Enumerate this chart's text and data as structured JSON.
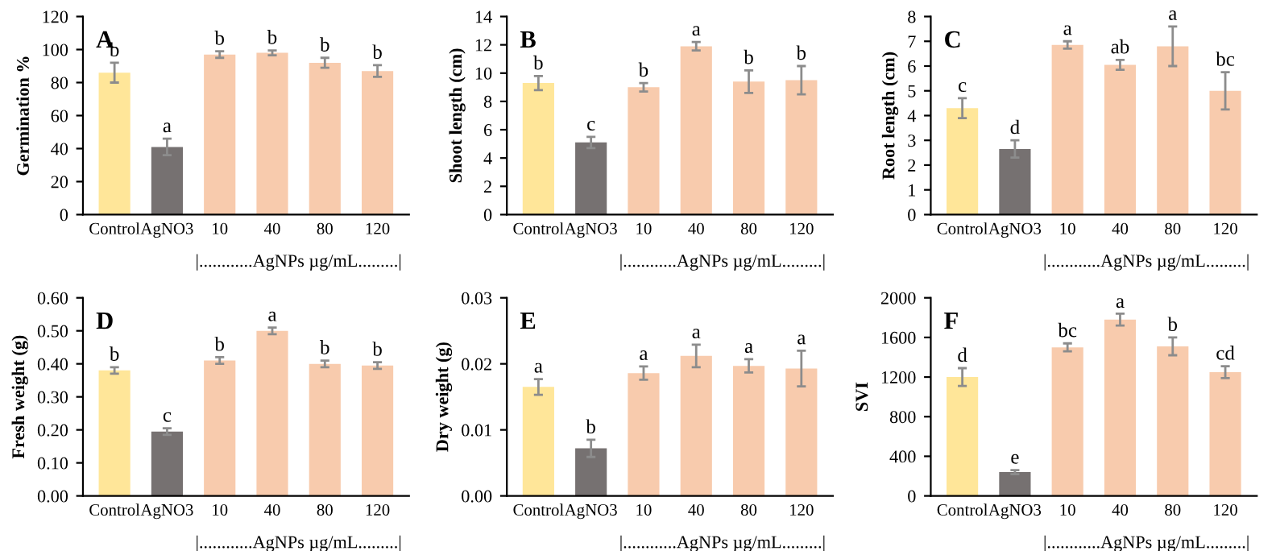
{
  "chart_data": [
    {
      "type": "bar",
      "title": "A",
      "ylabel": "Germination %",
      "xlabel": "|............AgNPs µg/mL.........|",
      "categories": [
        "Control",
        "AgNO3",
        "10",
        "40",
        "80",
        "120"
      ],
      "values": [
        86,
        41,
        97,
        98,
        92,
        87
      ],
      "errors": [
        6,
        5,
        2,
        1.5,
        3,
        3.5
      ],
      "colors": [
        "#ffe699",
        "#767171",
        "#f8cbad",
        "#f8cbad",
        "#f8cbad",
        "#f8cbad"
      ],
      "ylim": [
        0,
        120
      ],
      "yticks": [
        0,
        20,
        40,
        60,
        80,
        100,
        120
      ],
      "grid": false,
      "annotations": [
        {
          "text": "b",
          "x": "Control",
          "y": 92
        },
        {
          "text": "a",
          "x": "AgNO3",
          "y": 46
        },
        {
          "text": "b",
          "x": "10",
          "y": 99
        },
        {
          "text": "b",
          "x": "40",
          "y": 99.5
        },
        {
          "text": "b",
          "x": "80",
          "y": 95
        },
        {
          "text": "b",
          "x": "120",
          "y": 90.5
        }
      ]
    },
    {
      "type": "bar",
      "title": "B",
      "ylabel": "Shoot length (cm)",
      "xlabel": "|............AgNPs µg/mL.........|",
      "categories": [
        "Control",
        "AgNO3",
        "10",
        "40",
        "80",
        "120"
      ],
      "values": [
        9.3,
        5.1,
        9.0,
        11.9,
        9.4,
        9.5
      ],
      "errors": [
        0.5,
        0.4,
        0.3,
        0.3,
        0.8,
        1.0
      ],
      "colors": [
        "#ffe699",
        "#767171",
        "#f8cbad",
        "#f8cbad",
        "#f8cbad",
        "#f8cbad"
      ],
      "ylim": [
        0,
        14
      ],
      "yticks": [
        0,
        2,
        4,
        6,
        8,
        10,
        12,
        14
      ],
      "grid": false,
      "annotations": [
        {
          "text": "b",
          "x": "Control",
          "y": 9.8
        },
        {
          "text": "c",
          "x": "AgNO3",
          "y": 5.5
        },
        {
          "text": "b",
          "x": "10",
          "y": 9.3
        },
        {
          "text": "a",
          "x": "40",
          "y": 12.2
        },
        {
          "text": "b",
          "x": "80",
          "y": 10.2
        },
        {
          "text": "b",
          "x": "120",
          "y": 10.5
        }
      ]
    },
    {
      "type": "bar",
      "title": "C",
      "ylabel": "Root length (cm)",
      "xlabel": "|............AgNPs µg/mL.........|",
      "categories": [
        "Control",
        "AgNO3",
        "10",
        "40",
        "80",
        "120"
      ],
      "values": [
        4.3,
        2.65,
        6.85,
        6.05,
        6.8,
        5.0
      ],
      "errors": [
        0.4,
        0.35,
        0.15,
        0.2,
        0.8,
        0.75
      ],
      "colors": [
        "#ffe699",
        "#767171",
        "#f8cbad",
        "#f8cbad",
        "#f8cbad",
        "#f8cbad"
      ],
      "ylim": [
        0,
        8
      ],
      "yticks": [
        0,
        1,
        2,
        3,
        4,
        5,
        6,
        7,
        8
      ],
      "grid": false,
      "annotations": [
        {
          "text": "c",
          "x": "Control",
          "y": 4.7
        },
        {
          "text": "d",
          "x": "AgNO3",
          "y": 3.0
        },
        {
          "text": "a",
          "x": "10",
          "y": 7.0
        },
        {
          "text": "ab",
          "x": "40",
          "y": 6.25
        },
        {
          "text": "a",
          "x": "80",
          "y": 7.6
        },
        {
          "text": "bc",
          "x": "120",
          "y": 5.75
        }
      ]
    },
    {
      "type": "bar",
      "title": "D",
      "ylabel": "Fresh weight (g)",
      "xlabel": "|............AgNPs µg/mL.........|",
      "categories": [
        "Control",
        "AgNO3",
        "10",
        "40",
        "80",
        "120"
      ],
      "values": [
        0.38,
        0.195,
        0.41,
        0.5,
        0.4,
        0.395
      ],
      "errors": [
        0.01,
        0.01,
        0.01,
        0.01,
        0.01,
        0.01
      ],
      "colors": [
        "#ffe699",
        "#767171",
        "#f8cbad",
        "#f8cbad",
        "#f8cbad",
        "#f8cbad"
      ],
      "ylim": [
        0,
        0.6
      ],
      "yticks": [
        {
          "value": 0,
          "label": "0.00"
        },
        {
          "value": 0.1,
          "label": "0.10"
        },
        {
          "value": 0.2,
          "label": "0.20"
        },
        {
          "value": 0.3,
          "label": "0.30"
        },
        {
          "value": 0.4,
          "label": "0.40"
        },
        {
          "value": 0.5,
          "label": "0.50"
        },
        {
          "value": 0.6,
          "label": "0.60"
        }
      ],
      "grid": false,
      "annotations": [
        {
          "text": "b",
          "x": "Control",
          "y": 0.39
        },
        {
          "text": "c",
          "x": "AgNO3",
          "y": 0.205
        },
        {
          "text": "b",
          "x": "10",
          "y": 0.42
        },
        {
          "text": "a",
          "x": "40",
          "y": 0.51
        },
        {
          "text": "b",
          "x": "80",
          "y": 0.41
        },
        {
          "text": "b",
          "x": "120",
          "y": 0.405
        }
      ]
    },
    {
      "type": "bar",
      "title": "E",
      "ylabel": "Dry weight (g)",
      "xlabel": "|............AgNPs µg/mL.........|",
      "categories": [
        "Control",
        "AgNO3",
        "10",
        "40",
        "80",
        "120"
      ],
      "values": [
        0.0165,
        0.0072,
        0.0186,
        0.0212,
        0.0197,
        0.0193
      ],
      "errors": [
        0.0012,
        0.0013,
        0.001,
        0.0017,
        0.001,
        0.0027
      ],
      "colors": [
        "#ffe699",
        "#767171",
        "#f8cbad",
        "#f8cbad",
        "#f8cbad",
        "#f8cbad"
      ],
      "ylim": [
        0,
        0.03
      ],
      "yticks": [
        {
          "value": 0,
          "label": "0.00"
        },
        {
          "value": 0.01,
          "label": "0.01"
        },
        {
          "value": 0.02,
          "label": "0.02"
        },
        {
          "value": 0.03,
          "label": "0.03"
        }
      ],
      "grid": false,
      "annotations": [
        {
          "text": "a",
          "x": "Control",
          "y": 0.0177
        },
        {
          "text": "b",
          "x": "AgNO3",
          "y": 0.0085
        },
        {
          "text": "a",
          "x": "10",
          "y": 0.0196
        },
        {
          "text": "a",
          "x": "40",
          "y": 0.0229
        },
        {
          "text": "a",
          "x": "80",
          "y": 0.0207
        },
        {
          "text": "a",
          "x": "120",
          "y": 0.022
        }
      ]
    },
    {
      "type": "bar",
      "title": "F",
      "ylabel": "SVI",
      "xlabel": "|............AgNPs µg/mL.........|",
      "categories": [
        "Control",
        "AgNO3",
        "10",
        "40",
        "80",
        "120"
      ],
      "values": [
        1200,
        240,
        1500,
        1780,
        1510,
        1250
      ],
      "errors": [
        90,
        20,
        40,
        60,
        90,
        60
      ],
      "colors": [
        "#ffe699",
        "#767171",
        "#f8cbad",
        "#f8cbad",
        "#f8cbad",
        "#f8cbad"
      ],
      "ylim": [
        0,
        2000
      ],
      "yticks": [
        0,
        400,
        800,
        1200,
        1600,
        2000
      ],
      "grid": false,
      "annotations": [
        {
          "text": "d",
          "x": "Control",
          "y": 1290
        },
        {
          "text": "e",
          "x": "AgNO3",
          "y": 260
        },
        {
          "text": "bc",
          "x": "10",
          "y": 1540
        },
        {
          "text": "a",
          "x": "40",
          "y": 1835
        },
        {
          "text": "b",
          "x": "80",
          "y": 1600
        },
        {
          "text": "cd",
          "x": "120",
          "y": 1310
        }
      ]
    }
  ]
}
